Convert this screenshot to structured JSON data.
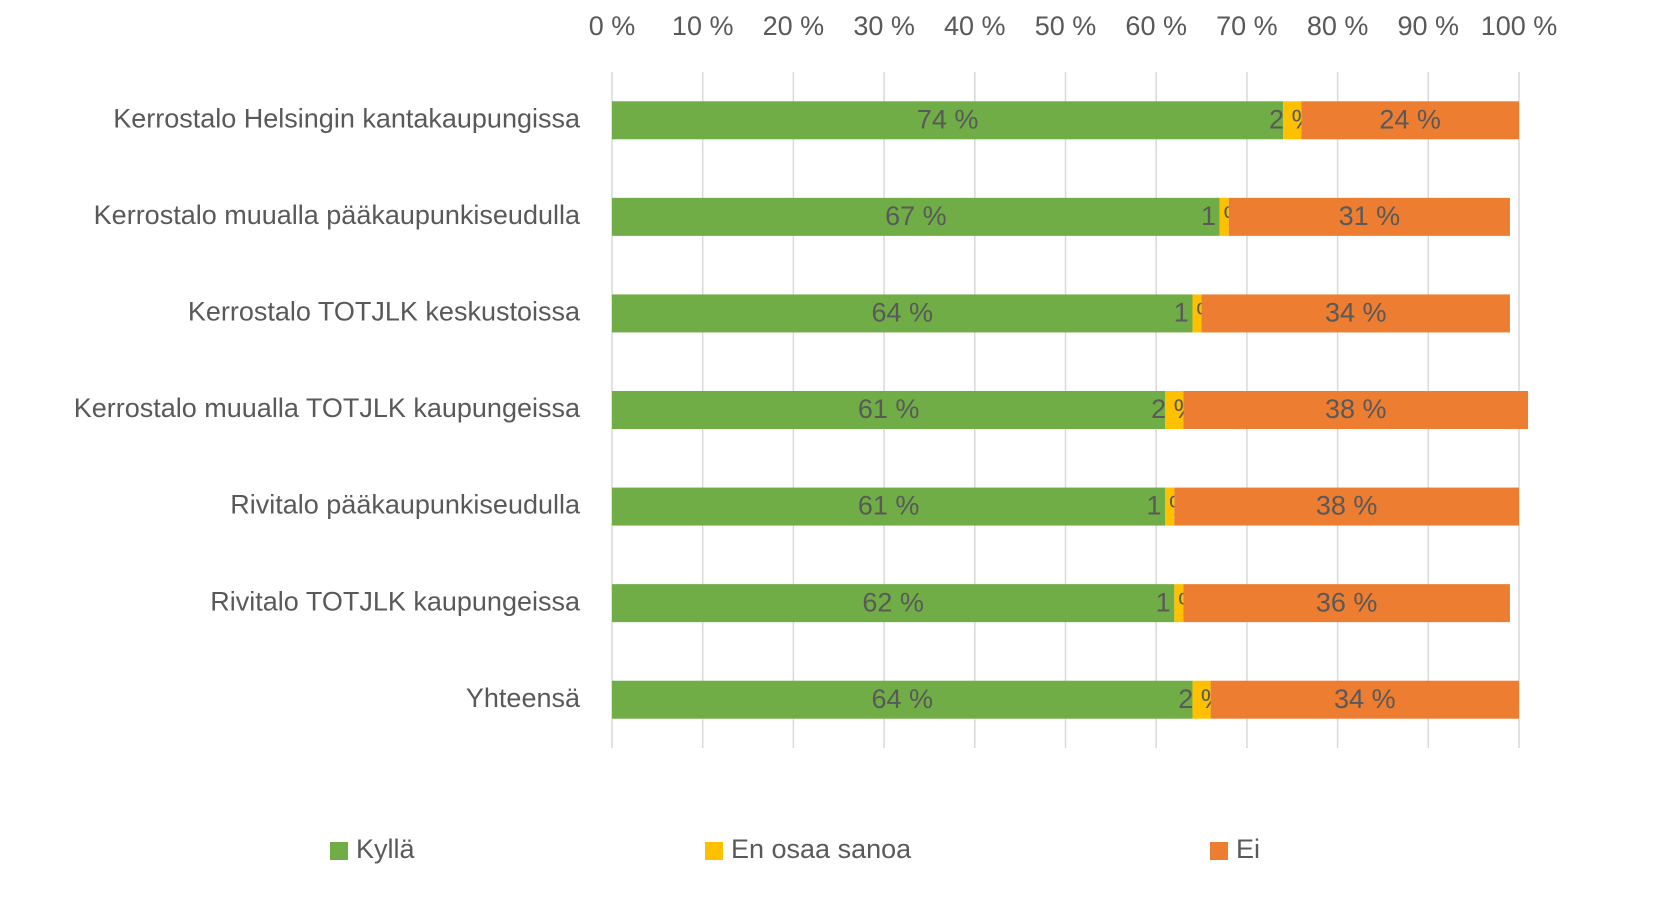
{
  "chart_data": {
    "type": "stacked_bar_horizontal",
    "categories": [
      "Kerrostalo Helsingin kantakaupungissa",
      "Kerrostalo muualla pääkaupunkiseudulla",
      "Kerrostalo TOTJLK keskustoissa",
      "Kerrostalo muualla TOTJLK kaupungeissa",
      "Rivitalo pääkaupunkiseudulla",
      "Rivitalo TOTJLK kaupungeissa",
      "Yhteensä"
    ],
    "series": [
      {
        "name": "Kyllä",
        "color": "#70ad47",
        "values": [
          74,
          67,
          64,
          61,
          61,
          62,
          64
        ],
        "value_labels": [
          "74 %",
          "67 %",
          "64 %",
          "61 %",
          "61 %",
          "62 %",
          "64 %"
        ]
      },
      {
        "name": "En osaa sanoa",
        "color": "#ffc000",
        "values": [
          2,
          1,
          1,
          2,
          1,
          1,
          2
        ],
        "value_labels": [
          "2 %",
          "1 %",
          "1 %",
          "2 %",
          "1 %",
          "1 %",
          "2 %"
        ]
      },
      {
        "name": "Ei",
        "color": "#ed7d31",
        "values": [
          24,
          31,
          34,
          38,
          38,
          36,
          34
        ],
        "value_labels": [
          "24 %",
          "31 %",
          "34 %",
          "38 %",
          "38 %",
          "36 %",
          "34 %"
        ]
      }
    ],
    "xlim": [
      0,
      100
    ],
    "xticks": [
      {
        "value": 0,
        "label": "0 %"
      },
      {
        "value": 10,
        "label": "10 %"
      },
      {
        "value": 20,
        "label": "20 %"
      },
      {
        "value": 30,
        "label": "30 %"
      },
      {
        "value": 40,
        "label": "40 %"
      },
      {
        "value": 50,
        "label": "50 %"
      },
      {
        "value": 60,
        "label": "60 %"
      },
      {
        "value": 70,
        "label": "70 %"
      },
      {
        "value": 80,
        "label": "80 %"
      },
      {
        "value": 90,
        "label": "90 %"
      },
      {
        "value": 100,
        "label": "100 %"
      }
    ],
    "x_axis_position": "top",
    "grid": true,
    "legend": "bottom"
  }
}
